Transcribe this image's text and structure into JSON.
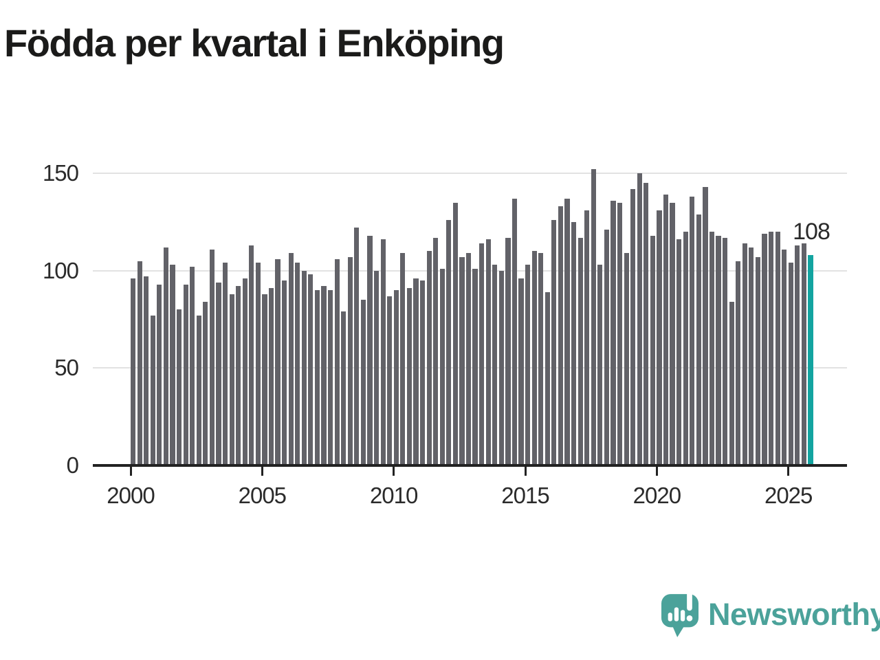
{
  "header": {
    "title": "Födda per kvartal i Enköping"
  },
  "colors": {
    "bar_gray": "#626268",
    "accent_teal": "#13a4a0",
    "gridline": "#e2e2e2",
    "axis": "#222222",
    "label_text": "#2b2b2b",
    "logo_teal": "#4ba29a"
  },
  "chart_data": {
    "type": "bar",
    "title": "Födda per kvartal i Enköping",
    "x_unit": "quarter",
    "x_range": "2000 Q1 – 2025 Q4",
    "values": [
      96,
      105,
      97,
      77,
      93,
      112,
      103,
      80,
      93,
      102,
      77,
      84,
      111,
      94,
      104,
      88,
      92,
      96,
      113,
      104,
      88,
      91,
      106,
      95,
      109,
      104,
      100,
      98,
      90,
      92,
      90,
      106,
      79,
      107,
      122,
      85,
      118,
      100,
      116,
      87,
      90,
      109,
      91,
      96,
      95,
      110,
      117,
      101,
      126,
      135,
      107,
      109,
      101,
      114,
      116,
      103,
      100,
      117,
      137,
      96,
      103,
      110,
      109,
      89,
      126,
      133,
      137,
      125,
      117,
      131,
      152,
      103,
      121,
      136,
      135,
      109,
      142,
      150,
      145,
      118,
      131,
      139,
      135,
      116,
      120,
      138,
      129,
      143,
      120,
      118,
      117,
      84,
      105,
      114,
      112,
      107,
      119,
      120,
      120,
      111,
      104,
      113,
      114,
      108
    ],
    "highlight_index": 103,
    "highlight_label": "108",
    "x_ticks": [
      "2000",
      "2005",
      "2010",
      "2015",
      "2020",
      "2025"
    ],
    "y_ticks": [
      0,
      50,
      100,
      150
    ],
    "ylim": [
      0,
      155
    ],
    "grid": "horizontal",
    "legend": "none"
  },
  "footer": {
    "brand": "Newsworthy"
  }
}
